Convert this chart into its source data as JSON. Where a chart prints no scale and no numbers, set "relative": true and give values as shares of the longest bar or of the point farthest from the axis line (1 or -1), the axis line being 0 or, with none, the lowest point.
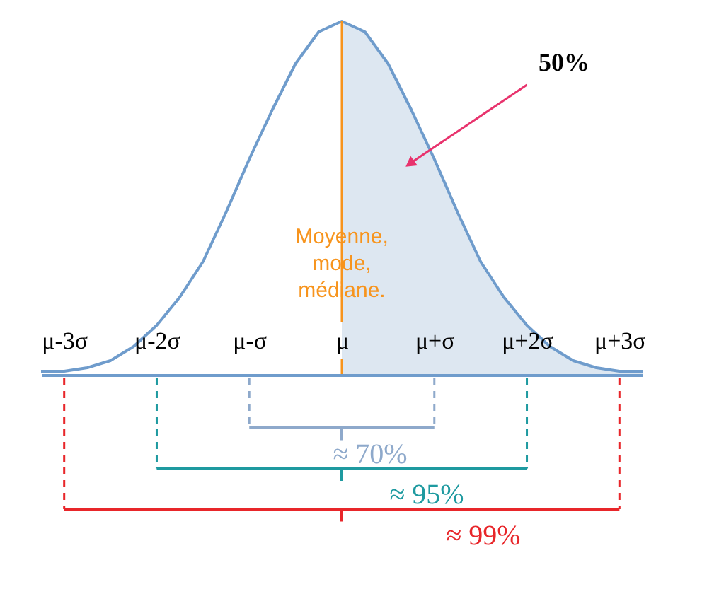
{
  "chart_data": {
    "type": "line",
    "relative": true,
    "categories": [
      null,
      "μ-3σ",
      null,
      null,
      null,
      "μ-2σ",
      null,
      null,
      null,
      "μ-σ",
      null,
      null,
      null,
      "μ",
      null,
      null,
      null,
      "μ+σ",
      null,
      null,
      null,
      "μ+2σ",
      null,
      null,
      null,
      "μ+3σ",
      null
    ],
    "series": [
      {
        "type": "area",
        "color": "#dde7f1",
        "values": [
          null,
          null,
          null,
          null,
          null,
          null,
          null,
          null,
          null,
          null,
          null,
          null,
          null,
          1,
          0.97,
          0.88,
          0.75,
          0.61,
          0.46,
          0.32,
          0.22,
          0.14,
          0.08,
          0.04,
          0.02,
          0.01,
          0.01
        ]
      },
      {
        "color": "#6f9ccc",
        "values": [
          0.01,
          0.01,
          0.02,
          0.04,
          0.08,
          0.14,
          0.22,
          0.32,
          0.46,
          0.61,
          0.75,
          0.88,
          0.97,
          1,
          0.97,
          0.88,
          0.75,
          0.61,
          0.46,
          0.32,
          0.22,
          0.14,
          0.08,
          0.04,
          0.02,
          0.01,
          0.01
        ]
      }
    ],
    "ref_lines": [
      {
        "axis": "x",
        "value": "μ",
        "label": "Moyenne,\nmode,\nmédiane.",
        "color": "#f7941d"
      }
    ],
    "annotations": [
      "50%",
      "≈ 70%",
      "≈ 95%",
      "≈ 99%"
    ]
  }
}
